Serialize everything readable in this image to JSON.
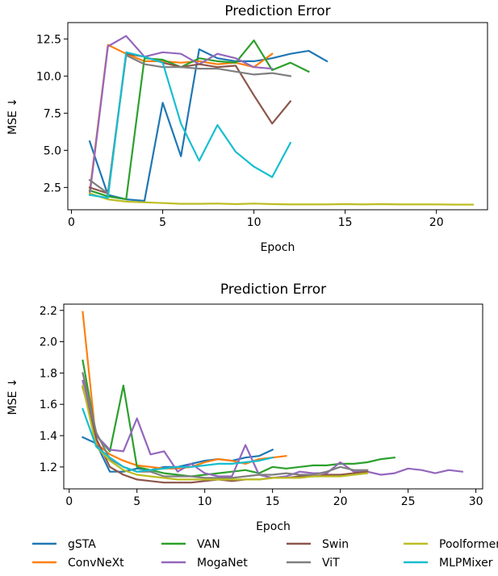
{
  "colors": {
    "gSTA": "#1f77b4",
    "ConvNeXt": "#ff7f0e",
    "VAN": "#2ca02c",
    "MogaNet": "#9467bd",
    "Swin": "#8c564b",
    "ViT": "#7f7f7f",
    "Poolformer": "#bcbd22",
    "MLPMixer": "#17becf"
  },
  "chart_data": [
    {
      "type": "line",
      "title": "Prediction Error",
      "xlabel": "Epoch",
      "ylabel": "MSE ↓",
      "xlim": [
        -0.2,
        22.8
      ],
      "ylim": [
        1.0,
        13.6
      ],
      "xticks": [
        0,
        5,
        10,
        15,
        20
      ],
      "yticks": [
        2.5,
        5.0,
        7.5,
        10.0,
        12.5
      ],
      "ytick_labels": [
        "2.5",
        "5.0",
        "7.5",
        "10.0",
        "12.5"
      ],
      "grid": false,
      "series": [
        {
          "name": "gSTA",
          "x": [
            1,
            2,
            3,
            4,
            5,
            6,
            7,
            8,
            9,
            10,
            11,
            12,
            13,
            14
          ],
          "y": [
            5.6,
            2.0,
            1.7,
            1.6,
            8.2,
            4.6,
            11.8,
            11.2,
            11.0,
            11.0,
            11.2,
            11.5,
            11.7,
            11.0
          ]
        },
        {
          "name": "ConvNeXt",
          "x": [
            1,
            2,
            3,
            4,
            5,
            6,
            7,
            8,
            9,
            10,
            11
          ],
          "y": [
            2.2,
            12.1,
            11.5,
            11.0,
            11.0,
            10.9,
            11.0,
            10.8,
            10.9,
            10.6,
            11.5
          ]
        },
        {
          "name": "VAN",
          "x": [
            1,
            2,
            3,
            4,
            5,
            6,
            7,
            8,
            9,
            10,
            11,
            12,
            13
          ],
          "y": [
            2.3,
            1.9,
            1.7,
            11.2,
            11.1,
            10.6,
            11.2,
            11.0,
            10.9,
            12.4,
            10.4,
            10.9,
            10.3
          ]
        },
        {
          "name": "MogaNet",
          "x": [
            1,
            2,
            3,
            4,
            5,
            6,
            7,
            8,
            9,
            10,
            11
          ],
          "y": [
            2.0,
            12.0,
            12.7,
            11.3,
            11.6,
            11.5,
            10.8,
            11.5,
            11.2,
            10.6,
            10.5
          ]
        },
        {
          "name": "Swin",
          "x": [
            1,
            2,
            3,
            4,
            5,
            6,
            7,
            8,
            9,
            10,
            11,
            12
          ],
          "y": [
            2.5,
            2.1,
            11.5,
            11.3,
            10.9,
            10.6,
            10.8,
            10.6,
            10.7,
            8.7,
            6.8,
            8.3
          ]
        },
        {
          "name": "ViT",
          "x": [
            1,
            2,
            3,
            4,
            5,
            6,
            7,
            8,
            9,
            10,
            11,
            12
          ],
          "y": [
            3.0,
            2.1,
            11.4,
            10.8,
            10.6,
            10.6,
            10.5,
            10.5,
            10.3,
            10.1,
            10.2,
            10.0
          ]
        },
        {
          "name": "Poolformer",
          "x": [
            1,
            2,
            3,
            4,
            5,
            6,
            7,
            8,
            9,
            10,
            11,
            12,
            13,
            14,
            15,
            16,
            17,
            18,
            19,
            20,
            21,
            22
          ],
          "y": [
            2.1,
            1.7,
            1.55,
            1.5,
            1.45,
            1.4,
            1.4,
            1.42,
            1.38,
            1.42,
            1.38,
            1.36,
            1.36,
            1.36,
            1.38,
            1.36,
            1.38,
            1.36,
            1.36,
            1.36,
            1.35,
            1.35
          ]
        },
        {
          "name": "MLPMixer",
          "x": [
            1,
            2,
            3,
            4,
            5,
            6,
            7,
            8,
            9,
            10,
            11,
            12
          ],
          "y": [
            2.0,
            1.8,
            11.6,
            11.3,
            10.9,
            6.8,
            4.3,
            6.7,
            4.9,
            3.9,
            3.2,
            5.5
          ]
        }
      ]
    },
    {
      "type": "line",
      "title": "Prediction Error",
      "xlabel": "Epoch",
      "ylabel": "MSE ↓",
      "xlim": [
        -0.4,
        30.5
      ],
      "ylim": [
        1.06,
        2.24
      ],
      "xticks": [
        0,
        5,
        10,
        15,
        20,
        25,
        30
      ],
      "yticks": [
        1.2,
        1.4,
        1.6,
        1.8,
        2.0,
        2.2
      ],
      "ytick_labels": [
        "1.2",
        "1.4",
        "1.6",
        "1.8",
        "2.0",
        "2.2"
      ],
      "grid": false,
      "legend": "bottom",
      "series": [
        {
          "name": "gSTA",
          "x": [
            1,
            2,
            3,
            4,
            5,
            6,
            7,
            8,
            9,
            10,
            11,
            12,
            13,
            14,
            15
          ],
          "y": [
            1.39,
            1.35,
            1.17,
            1.17,
            1.19,
            1.18,
            1.2,
            1.2,
            1.22,
            1.24,
            1.25,
            1.24,
            1.26,
            1.27,
            1.31
          ]
        },
        {
          "name": "ConvNeXt",
          "x": [
            1,
            2,
            3,
            4,
            5,
            6,
            7,
            8,
            9,
            10,
            11,
            12,
            13,
            14,
            15,
            16
          ],
          "y": [
            2.19,
            1.35,
            1.28,
            1.24,
            1.21,
            1.2,
            1.19,
            1.19,
            1.2,
            1.23,
            1.25,
            1.24,
            1.22,
            1.25,
            1.26,
            1.27
          ]
        },
        {
          "name": "VAN",
          "x": [
            1,
            2,
            3,
            4,
            5,
            6,
            7,
            8,
            9,
            10,
            11,
            12,
            13,
            14,
            15,
            16,
            17,
            18,
            19,
            20,
            21,
            22,
            23,
            24
          ],
          "y": [
            1.88,
            1.4,
            1.3,
            1.72,
            1.2,
            1.18,
            1.16,
            1.15,
            1.14,
            1.15,
            1.16,
            1.17,
            1.18,
            1.16,
            1.2,
            1.19,
            1.2,
            1.21,
            1.21,
            1.22,
            1.22,
            1.23,
            1.25,
            1.26
          ]
        },
        {
          "name": "MogaNet",
          "x": [
            1,
            2,
            3,
            4,
            5,
            6,
            7,
            8,
            9,
            10,
            11,
            12,
            13,
            14,
            15,
            16,
            17,
            18,
            19,
            20,
            21,
            22,
            23,
            24,
            25,
            26,
            27,
            28,
            29
          ],
          "y": [
            1.75,
            1.4,
            1.31,
            1.3,
            1.51,
            1.28,
            1.3,
            1.17,
            1.22,
            1.16,
            1.14,
            1.14,
            1.34,
            1.15,
            1.13,
            1.14,
            1.17,
            1.16,
            1.16,
            1.23,
            1.17,
            1.17,
            1.15,
            1.16,
            1.19,
            1.18,
            1.16,
            1.18,
            1.17
          ]
        },
        {
          "name": "Swin",
          "x": [
            1,
            2,
            3,
            4,
            5,
            6,
            7,
            8,
            9,
            10,
            11,
            12,
            13,
            14,
            15,
            16,
            17,
            18,
            19,
            20,
            21,
            22
          ],
          "y": [
            1.71,
            1.38,
            1.2,
            1.15,
            1.12,
            1.11,
            1.1,
            1.1,
            1.1,
            1.11,
            1.12,
            1.11,
            1.12,
            1.12,
            1.13,
            1.13,
            1.14,
            1.14,
            1.15,
            1.15,
            1.16,
            1.17
          ]
        },
        {
          "name": "ViT",
          "x": [
            1,
            2,
            3,
            4,
            5,
            6,
            7,
            8,
            9,
            10,
            11,
            12,
            13,
            14,
            15,
            16,
            17,
            18,
            19,
            20,
            21,
            22
          ],
          "y": [
            1.8,
            1.42,
            1.25,
            1.2,
            1.17,
            1.17,
            1.14,
            1.14,
            1.14,
            1.13,
            1.13,
            1.13,
            1.14,
            1.15,
            1.15,
            1.16,
            1.15,
            1.15,
            1.17,
            1.2,
            1.18,
            1.18
          ]
        },
        {
          "name": "Poolformer",
          "x": [
            1,
            2,
            3,
            4,
            5,
            6,
            7,
            8,
            9,
            10,
            11,
            12,
            13,
            14,
            15,
            16,
            17,
            18,
            19,
            20,
            21,
            22
          ],
          "y": [
            1.72,
            1.33,
            1.24,
            1.18,
            1.15,
            1.14,
            1.13,
            1.12,
            1.12,
            1.12,
            1.12,
            1.12,
            1.12,
            1.12,
            1.13,
            1.13,
            1.13,
            1.14,
            1.14,
            1.14,
            1.15,
            1.16
          ]
        },
        {
          "name": "MLPMixer",
          "x": [
            1,
            2,
            3,
            4,
            5,
            6,
            7,
            8,
            9,
            10,
            11,
            12,
            13,
            14,
            15
          ],
          "y": [
            1.57,
            1.33,
            1.26,
            1.2,
            1.17,
            1.18,
            1.19,
            1.2,
            1.2,
            1.21,
            1.22,
            1.22,
            1.23,
            1.24,
            1.26
          ]
        }
      ]
    }
  ]
}
